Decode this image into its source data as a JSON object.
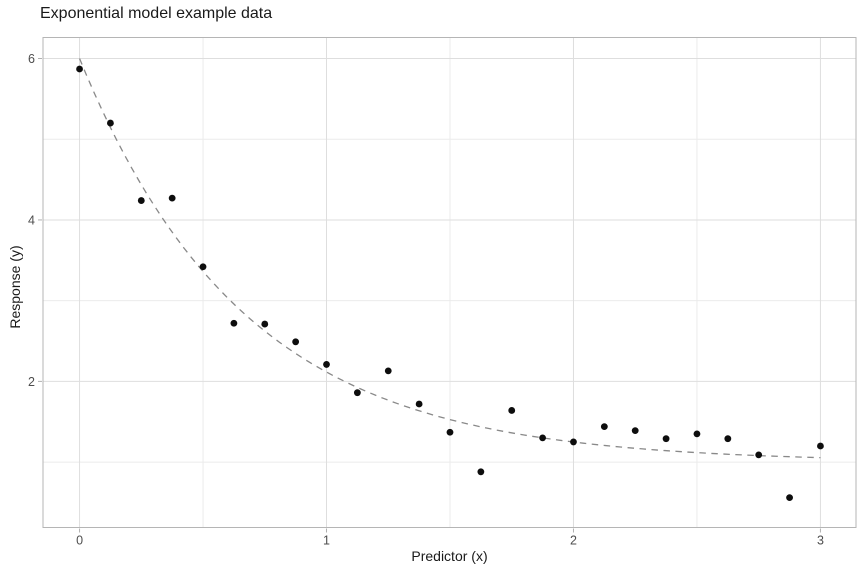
{
  "title": "Exponential model example data",
  "chart_data": {
    "type": "scatter",
    "title": "Exponential model example data",
    "xlabel": "Predictor (x)",
    "ylabel": "Response (y)",
    "xlim": [
      -0.148,
      3.144
    ],
    "ylim": [
      0.19,
      6.26
    ],
    "x_major_ticks": [
      0,
      1,
      2,
      3
    ],
    "x_minor_gridlines": [
      0.5,
      1.5,
      2.5
    ],
    "y_major_ticks": [
      2,
      4,
      6
    ],
    "y_minor_gridlines": [
      1,
      3,
      5
    ],
    "grid": true,
    "legend": "none",
    "points": [
      [
        0.0,
        5.87
      ],
      [
        0.125,
        5.2
      ],
      [
        0.25,
        4.24
      ],
      [
        0.375,
        4.27
      ],
      [
        0.5,
        3.42
      ],
      [
        0.625,
        2.72
      ],
      [
        0.75,
        2.71
      ],
      [
        0.875,
        2.49
      ],
      [
        1.0,
        2.21
      ],
      [
        1.125,
        1.86
      ],
      [
        1.25,
        2.13
      ],
      [
        1.375,
        1.72
      ],
      [
        1.5,
        1.37
      ],
      [
        1.625,
        0.88
      ],
      [
        1.75,
        1.64
      ],
      [
        1.875,
        1.3
      ],
      [
        2.0,
        1.25
      ],
      [
        2.125,
        1.44
      ],
      [
        2.25,
        1.39
      ],
      [
        2.375,
        1.29
      ],
      [
        2.5,
        1.35
      ],
      [
        2.625,
        1.29
      ],
      [
        2.75,
        1.09
      ],
      [
        2.875,
        0.56
      ],
      [
        3.0,
        1.2
      ]
    ],
    "fit_curve": {
      "formula": "y = c + a * exp(-b * x)",
      "a": 5,
      "b": 1.5,
      "c": 1,
      "x_range": [
        0,
        3
      ],
      "style": "dashed"
    },
    "colors": {
      "background": "#ffffff",
      "point": "#0d0d0d",
      "curve": "#898989",
      "grid_major": "#dedede",
      "grid_minor": "#ebebeb",
      "panel_border": "#b5b5b5",
      "tick_mark": "#b0b0b0",
      "axis_text": "#4d4d4d",
      "title_text": "#1a1a1a"
    }
  }
}
